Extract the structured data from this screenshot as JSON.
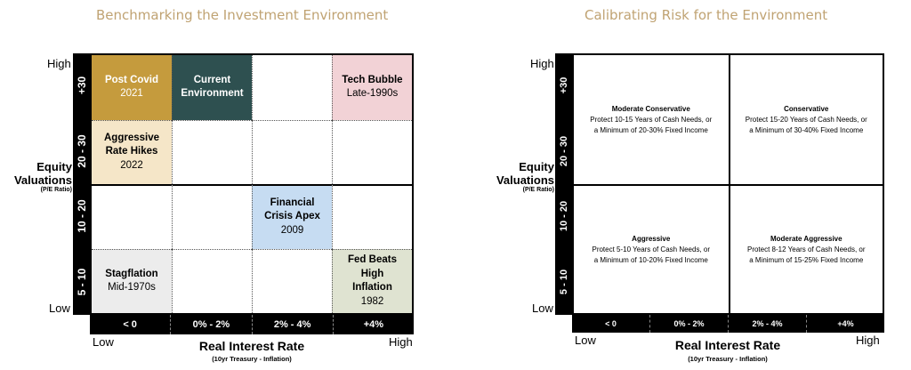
{
  "left": {
    "title": "Benchmarking the Investment Environment",
    "y_high": "High",
    "y_low": "Low",
    "y_title": "Equity",
    "y_title2": "Valuations",
    "y_sub": "(P/E Ratio)",
    "y_bands": [
      "+30",
      "20 - 30",
      "10 - 20",
      "5 - 10"
    ],
    "x_bands": [
      "< 0",
      "0% - 2%",
      "2% - 4%",
      "+4%"
    ],
    "x_low": "Low",
    "x_high": "High",
    "x_title": "Real Interest Rate",
    "x_sub": "(10yr Treasury - Inflation)",
    "cells": [
      [
        {
          "name": "Post Covid",
          "sub": "2021",
          "color": "#c59b3d",
          "textColor": "#ffffff"
        },
        {
          "name": "Current Environment",
          "sub": "",
          "color": "#2e5050",
          "textColor": "#ffffff"
        },
        {
          "name": "",
          "sub": "",
          "color": "#ffffff",
          "textColor": "#000000"
        },
        {
          "name": "Tech Bubble",
          "sub": "Late-1990s",
          "color": "#f2d2d6",
          "textColor": "#000000"
        }
      ],
      [
        {
          "name": "Aggressive Rate Hikes",
          "sub": "2022",
          "color": "#f5e6c8",
          "textColor": "#000000"
        },
        {
          "name": "",
          "sub": "",
          "color": "#ffffff",
          "textColor": "#000000"
        },
        {
          "name": "",
          "sub": "",
          "color": "#ffffff",
          "textColor": "#000000"
        },
        {
          "name": "",
          "sub": "",
          "color": "#ffffff",
          "textColor": "#000000"
        }
      ],
      [
        {
          "name": "",
          "sub": "",
          "color": "#ffffff",
          "textColor": "#000000"
        },
        {
          "name": "",
          "sub": "",
          "color": "#ffffff",
          "textColor": "#000000"
        },
        {
          "name": "Financial Crisis Apex",
          "sub": "2009",
          "color": "#c6dcf2",
          "textColor": "#000000"
        },
        {
          "name": "",
          "sub": "",
          "color": "#ffffff",
          "textColor": "#000000"
        }
      ],
      [
        {
          "name": "Stagflation",
          "sub": "Mid-1970s",
          "color": "#ececec",
          "textColor": "#000000"
        },
        {
          "name": "",
          "sub": "",
          "color": "#ffffff",
          "textColor": "#000000"
        },
        {
          "name": "",
          "sub": "",
          "color": "#ffffff",
          "textColor": "#000000"
        },
        {
          "name": "Fed Beats High Inflation",
          "sub": "1982",
          "color": "#dfe3d1",
          "textColor": "#000000"
        }
      ]
    ]
  },
  "right": {
    "title": "Calibrating Risk for the Environment",
    "y_high": "High",
    "y_low": "Low",
    "y_title": "Equity",
    "y_title2": "Valuations",
    "y_sub": "(P/E Ratio)",
    "y_bands": [
      "+30",
      "20 - 30",
      "10 - 20",
      "5 - 10"
    ],
    "x_bands": [
      "< 0",
      "0% - 2%",
      "2% - 4%",
      "+4%"
    ],
    "x_low": "Low",
    "x_high": "High",
    "x_title": "Real Interest Rate",
    "x_sub": "(10yr Treasury - Inflation)",
    "quadrants": [
      {
        "name": "Moderate Conservative",
        "line1": "Protect 10-15 Years of Cash Needs, or",
        "line2": "a Minimum of 20-30% Fixed Income"
      },
      {
        "name": "Conservative",
        "line1": "Protect 15-20 Years of Cash Needs, or",
        "line2": "a Minimum of 30-40% Fixed Income"
      },
      {
        "name": "Aggressive",
        "line1": "Protect 5-10 Years of Cash Needs, or",
        "line2": "a Minimum of 10-20% Fixed Income"
      },
      {
        "name": "Moderate Aggressive",
        "line1": "Protect 8-12 Years of Cash Needs, or",
        "line2": "a Minimum of 15-25% Fixed Income"
      }
    ]
  }
}
